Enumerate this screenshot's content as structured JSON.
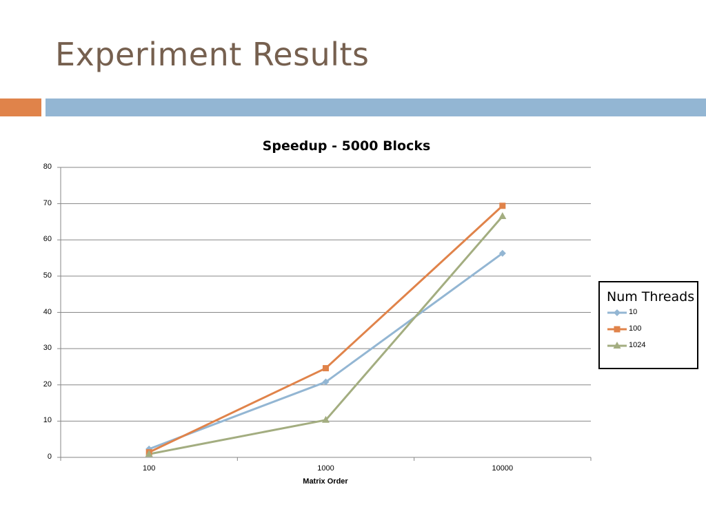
{
  "slide": {
    "title": "Experiment Results"
  },
  "colors": {
    "title": "#76604f",
    "band_orange": "#e0834a",
    "band_blue": "#93b6d3"
  },
  "chart_data": {
    "type": "line",
    "title": "Speedup - 5000 Blocks",
    "xlabel": "Matrix Order",
    "ylabel": "",
    "categories": [
      "100",
      "1000",
      "10000"
    ],
    "ylim": [
      0,
      80
    ],
    "yticks": [
      "0",
      "10",
      "20",
      "30",
      "40",
      "50",
      "60",
      "70",
      "80"
    ],
    "grid": true,
    "legend": {
      "title": "Num Threads",
      "placement": "right"
    },
    "series": [
      {
        "name": "10",
        "values": [
          2.3,
          20.8,
          56.3
        ],
        "color": "#93b6d3",
        "marker": "diamond"
      },
      {
        "name": "100",
        "values": [
          1.4,
          24.6,
          69.4
        ],
        "color": "#e0834a",
        "marker": "square"
      },
      {
        "name": "1024",
        "values": [
          0.9,
          10.3,
          66.5
        ],
        "color": "#a3ad80",
        "marker": "triangle"
      }
    ]
  }
}
